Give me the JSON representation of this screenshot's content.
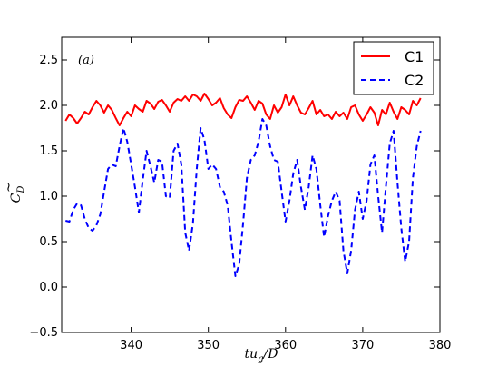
{
  "chart_data": {
    "type": "line",
    "panel_label": "(a)",
    "xlabel": "tu_g/D",
    "ylabel": "C_D",
    "xlim": [
      331,
      380
    ],
    "ylim": [
      -0.5,
      2.75
    ],
    "x_ticks": [
      340,
      350,
      360,
      370,
      380
    ],
    "y_ticks": [
      -0.5,
      0.0,
      0.5,
      1.0,
      1.5,
      2.0,
      2.5
    ],
    "x_tick_labels": [
      "340",
      "350",
      "360",
      "370",
      "380"
    ],
    "y_tick_labels": [
      "−0.5",
      "0.0",
      "0.5",
      "1.0",
      "1.5",
      "2.0",
      "2.5"
    ],
    "legend_position": "top-right",
    "grid": false,
    "series": [
      {
        "name": "C1",
        "color": "#ff0000",
        "style": "solid",
        "x": [
          331.5,
          332.0,
          332.5,
          333.0,
          333.5,
          334.0,
          334.5,
          335.0,
          335.5,
          336.0,
          336.5,
          337.0,
          337.5,
          338.0,
          338.5,
          339.0,
          339.5,
          340.0,
          340.5,
          341.0,
          341.5,
          342.0,
          342.5,
          343.0,
          343.5,
          344.0,
          344.5,
          345.0,
          345.5,
          346.0,
          346.5,
          347.0,
          347.5,
          348.0,
          348.5,
          349.0,
          349.5,
          350.0,
          350.5,
          351.0,
          351.5,
          352.0,
          352.5,
          353.0,
          353.5,
          354.0,
          354.5,
          355.0,
          355.5,
          356.0,
          356.5,
          357.0,
          357.5,
          358.0,
          358.5,
          359.0,
          359.5,
          360.0,
          360.5,
          361.0,
          361.5,
          362.0,
          362.5,
          363.0,
          363.5,
          364.0,
          364.5,
          365.0,
          365.5,
          366.0,
          366.5,
          367.0,
          367.5,
          368.0,
          368.5,
          369.0,
          369.5,
          370.0,
          370.5,
          371.0,
          371.5,
          372.0,
          372.5,
          373.0,
          373.5,
          374.0,
          374.5,
          375.0,
          375.5,
          376.0,
          376.5,
          377.0,
          377.5
        ],
        "values": [
          1.83,
          1.9,
          1.86,
          1.8,
          1.86,
          1.93,
          1.9,
          1.98,
          2.05,
          2.0,
          1.92,
          2.0,
          1.95,
          1.86,
          1.78,
          1.86,
          1.93,
          1.88,
          2.0,
          1.96,
          1.93,
          2.05,
          2.02,
          1.96,
          2.04,
          2.06,
          2.0,
          1.93,
          2.03,
          2.07,
          2.05,
          2.1,
          2.05,
          2.12,
          2.1,
          2.05,
          2.13,
          2.07,
          2.0,
          2.03,
          2.08,
          1.97,
          1.9,
          1.86,
          1.98,
          2.06,
          2.05,
          2.1,
          2.03,
          1.95,
          2.05,
          2.02,
          1.9,
          1.85,
          2.0,
          1.92,
          1.98,
          2.12,
          2.0,
          2.1,
          2.0,
          1.92,
          1.9,
          1.97,
          2.05,
          1.9,
          1.95,
          1.88,
          1.9,
          1.85,
          1.93,
          1.88,
          1.92,
          1.85,
          1.98,
          2.0,
          1.9,
          1.83,
          1.9,
          1.98,
          1.92,
          1.78,
          1.95,
          1.9,
          2.03,
          1.93,
          1.85,
          1.98,
          1.95,
          1.9,
          2.05,
          2.0,
          2.08
        ]
      },
      {
        "name": "C2",
        "color": "#0000ff",
        "style": "dashed",
        "x": [
          331.5,
          332.0,
          332.5,
          333.0,
          333.5,
          334.0,
          334.5,
          335.0,
          335.5,
          336.0,
          336.5,
          337.0,
          337.5,
          338.0,
          338.5,
          339.0,
          339.5,
          340.0,
          340.5,
          341.0,
          341.5,
          342.0,
          342.5,
          343.0,
          343.5,
          344.0,
          344.5,
          345.0,
          345.5,
          346.0,
          346.5,
          347.0,
          347.5,
          348.0,
          348.5,
          349.0,
          349.5,
          350.0,
          350.5,
          351.0,
          351.5,
          352.0,
          352.5,
          353.0,
          353.5,
          354.0,
          354.5,
          355.0,
          355.5,
          356.0,
          356.5,
          357.0,
          357.5,
          358.0,
          358.5,
          359.0,
          359.5,
          360.0,
          360.5,
          361.0,
          361.5,
          362.0,
          362.5,
          363.0,
          363.5,
          364.0,
          364.5,
          365.0,
          365.5,
          366.0,
          366.5,
          367.0,
          367.5,
          368.0,
          368.5,
          369.0,
          369.5,
          370.0,
          370.5,
          371.0,
          371.5,
          372.0,
          372.5,
          373.0,
          373.5,
          374.0,
          374.5,
          375.0,
          375.5,
          376.0,
          376.5,
          377.0,
          377.5
        ],
        "values": [
          0.73,
          0.72,
          0.85,
          0.92,
          0.9,
          0.75,
          0.65,
          0.62,
          0.68,
          0.8,
          1.05,
          1.3,
          1.35,
          1.33,
          1.55,
          1.75,
          1.6,
          1.35,
          1.1,
          0.82,
          1.18,
          1.5,
          1.33,
          1.15,
          1.4,
          1.38,
          1.0,
          0.98,
          1.5,
          1.58,
          1.35,
          0.6,
          0.4,
          0.7,
          1.3,
          1.75,
          1.62,
          1.3,
          1.35,
          1.3,
          1.1,
          1.05,
          0.9,
          0.5,
          0.12,
          0.25,
          0.7,
          1.2,
          1.4,
          1.45,
          1.6,
          1.85,
          1.78,
          1.55,
          1.4,
          1.38,
          1.05,
          0.72,
          0.95,
          1.25,
          1.4,
          1.1,
          0.85,
          1.1,
          1.45,
          1.3,
          0.9,
          0.55,
          0.78,
          0.95,
          1.05,
          0.95,
          0.4,
          0.15,
          0.4,
          0.85,
          1.05,
          0.75,
          0.95,
          1.35,
          1.45,
          1.0,
          0.6,
          1.1,
          1.58,
          1.72,
          1.15,
          0.65,
          0.28,
          0.5,
          1.2,
          1.55,
          1.72
        ]
      }
    ]
  }
}
